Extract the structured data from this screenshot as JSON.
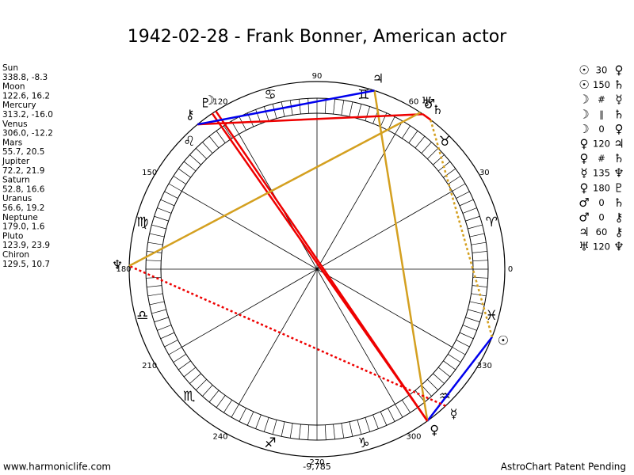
{
  "title": "1942-02-28 - Frank Bonner, American actor",
  "planets": [
    {
      "name": "Sun",
      "glyph": "☉",
      "position": "338.8, -8.3"
    },
    {
      "name": "Moon",
      "glyph": "☽",
      "position": "122.6, 16.2"
    },
    {
      "name": "Mercury",
      "glyph": "☿",
      "position": "313.2, -16.0"
    },
    {
      "name": "Venus",
      "glyph": "♀",
      "position": "306.0, -12.2"
    },
    {
      "name": "Mars",
      "glyph": "♂",
      "position": "55.7, 20.5"
    },
    {
      "name": "Jupiter",
      "glyph": "♃",
      "position": "72.2, 21.9"
    },
    {
      "name": "Saturn",
      "glyph": "♄",
      "position": "52.8, 16.6"
    },
    {
      "name": "Uranus",
      "glyph": "♅",
      "position": "56.6, 19.2"
    },
    {
      "name": "Neptune",
      "glyph": "♆",
      "position": "179.0, 1.6"
    },
    {
      "name": "Pluto",
      "glyph": "♇",
      "position": "123.9, 23.9"
    },
    {
      "name": "Chiron",
      "glyph": "⚷",
      "position": "129.5, 10.7"
    }
  ],
  "aspects": [
    {
      "p1": "☉",
      "angle": "30",
      "p2": "♀",
      "color": "#0000ee"
    },
    {
      "p1": "☉",
      "angle": "150",
      "p2": "♄",
      "color": "#d4a020",
      "dashed": true
    },
    {
      "p1": "☽",
      "angle": "#",
      "p2": "☿"
    },
    {
      "p1": "☽",
      "angle": "∥",
      "p2": "♄"
    },
    {
      "p1": "☽",
      "angle": "0",
      "p2": "♀",
      "color": "#ee0000"
    },
    {
      "p1": "♀",
      "angle": "120",
      "p2": "♃",
      "color": "#d4a020"
    },
    {
      "p1": "♀",
      "angle": "#",
      "p2": "♄"
    },
    {
      "p1": "☿",
      "angle": "135",
      "p2": "♆",
      "color": "#ee0000",
      "dashed": true
    },
    {
      "p1": "♀",
      "angle": "180",
      "p2": "♇",
      "color": "#ee0000"
    },
    {
      "p1": "♂",
      "angle": "0",
      "p2": "♄",
      "color": "#ee0000"
    },
    {
      "p1": "♂",
      "angle": "0",
      "p2": "⚷",
      "color": "#ee0000"
    },
    {
      "p1": "♃",
      "angle": "60",
      "p2": "⚷",
      "color": "#0000ee"
    },
    {
      "p1": "♅",
      "angle": "120",
      "p2": "♆",
      "color": "#d4a020"
    }
  ],
  "signs": [
    "♈",
    "♉",
    "♊",
    "♋",
    "♌",
    "♍",
    "♎",
    "♏",
    "♐",
    "♑",
    "♒",
    "♓"
  ],
  "degree_labels": [
    0,
    30,
    60,
    90,
    120,
    150,
    180,
    210,
    240,
    270,
    300,
    330
  ],
  "bottom_value": "-9,785",
  "footer": {
    "left": "www.harmoniclife.com",
    "right": "AstroChart Patent Pending"
  }
}
